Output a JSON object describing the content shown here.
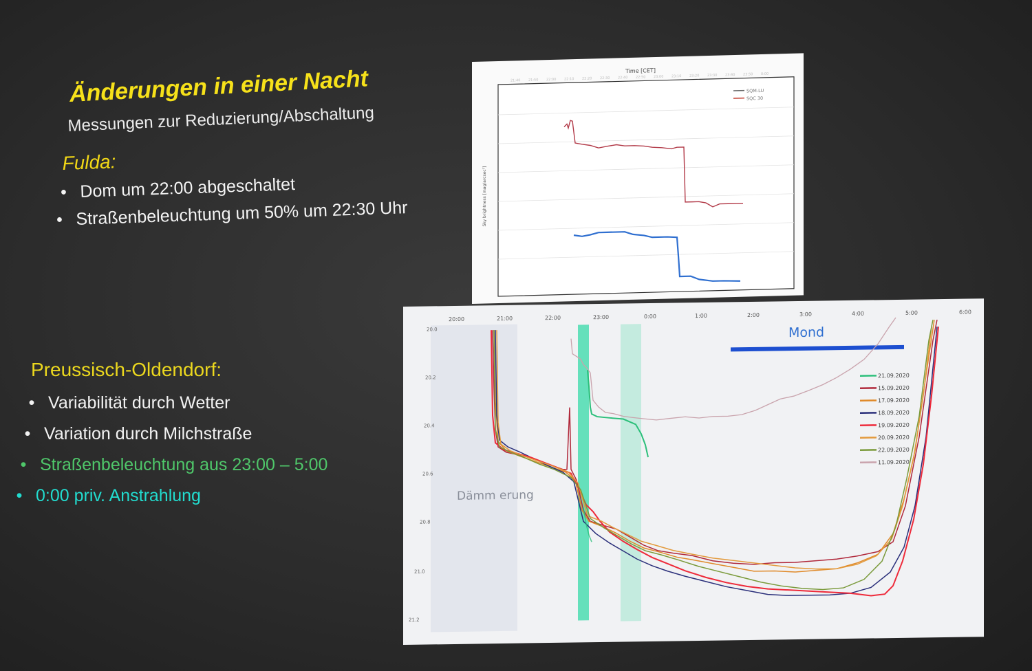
{
  "slide": {
    "title": "Änderungen in einer Nacht",
    "subtitle": "Messungen zur Reduzierung/Abschaltung",
    "fulda": {
      "heading": "Fulda:",
      "bullets": [
        "Dom um 22:00 abgeschaltet",
        "Straßenbeleuchtung um 50% um 22:30 Uhr"
      ]
    },
    "preussisch": {
      "heading": "Preussisch-Oldendorf:",
      "bullets": [
        "Variabilität durch Wetter",
        "Variation durch Milchstraße",
        "Straßenbeleuchtung aus 23:00 – 5:00",
        "0:00 priv. Anstrahlung"
      ]
    }
  },
  "colors": {
    "title": "#f6e11a",
    "heading": "#f2d816",
    "bullet_white": "#f4f4f4",
    "bullet_green": "#4fc76a",
    "bullet_cyan": "#22dccf",
    "moon_bar": "#1d4fd0",
    "highlight": "#35d9a8"
  },
  "chart_data": [
    {
      "type": "line",
      "xlabel": "Time [CET]",
      "legend": [
        "SQM-LU",
        "SQC 30"
      ],
      "legend_position": "top-right",
      "series": [
        {
          "name": "SQM-LU",
          "color": "#2f6fd0"
        },
        {
          "name": "SQC 30",
          "color": "#c0392b"
        }
      ]
    },
    {
      "type": "line",
      "x_ticks": [
        "20:00",
        "21:00",
        "22:00",
        "23:00",
        "0:00",
        "1:00",
        "2:00",
        "3:00",
        "4:00",
        "5:00",
        "6:00"
      ],
      "y_ticks": [
        "20.0",
        "20.2",
        "20.4",
        "20.6",
        "20.8",
        "21.0",
        "21.2"
      ],
      "annotations": [
        "Mond",
        "Dämm erung"
      ],
      "legend_position": "right",
      "series": [
        {
          "name": "21.09.2020",
          "color": "#2bbf7a"
        },
        {
          "name": "15.09.2020",
          "color": "#b0283a"
        },
        {
          "name": "17.09.2020",
          "color": "#e08a2a"
        },
        {
          "name": "18.09.2020",
          "color": "#2a2f7a"
        },
        {
          "name": "19.09.2020",
          "color": "#ee2a3a"
        },
        {
          "name": "20.09.2020",
          "color": "#e39a3c"
        },
        {
          "name": "22.09.2020",
          "color": "#7a9a3a"
        },
        {
          "name": "11.09.2020",
          "color": "#c9a3ac"
        }
      ]
    }
  ]
}
